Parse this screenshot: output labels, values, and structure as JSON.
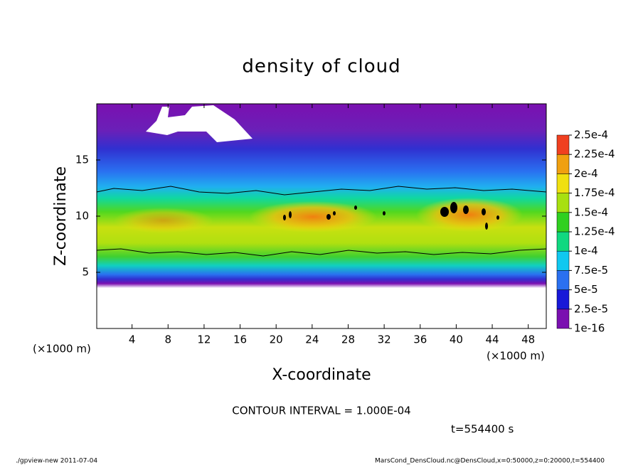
{
  "chart_data": {
    "type": "contour",
    "title": "density of cloud",
    "x_label": "X-coordinate",
    "y_label": "Z-coordinate",
    "x_unit": "(×1000 m)",
    "y_unit": "(×1000 m)",
    "xlim": [
      0,
      50
    ],
    "xticks": [
      4,
      8,
      12,
      16,
      20,
      24,
      28,
      32,
      36,
      40,
      44,
      48
    ],
    "ylim": [
      0,
      20
    ],
    "yticks": [
      5,
      10,
      15
    ],
    "levels": [
      {
        "value": 1e-16,
        "label": "1e-16"
      },
      {
        "value": 2.5e-05,
        "label": "2.5e-5"
      },
      {
        "value": 5e-05,
        "label": "5e-5"
      },
      {
        "value": 7.5e-05,
        "label": "7.5e-5"
      },
      {
        "value": 0.0001,
        "label": "1e-4"
      },
      {
        "value": 0.000125,
        "label": "1.25e-4"
      },
      {
        "value": 0.00015,
        "label": "1.5e-4"
      },
      {
        "value": 0.000175,
        "label": "1.75e-4"
      },
      {
        "value": 0.0002,
        "label": "2e-4"
      },
      {
        "value": 0.000225,
        "label": "2.25e-4"
      },
      {
        "value": 0.00025,
        "label": "2.5e-4"
      }
    ],
    "level_colors": [
      "#7a10b0",
      "#1818d8",
      "#2a70f0",
      "#10c8f0",
      "#10d880",
      "#30d020",
      "#a8e010",
      "#f0e010",
      "#f0a010",
      "#f04020"
    ],
    "contour_interval": "CONTOUR INTERVAL = 1.000E-04",
    "time_label": "t=554400 s",
    "footer_left": "./gpview-new  2011-07-04",
    "footer_right": "MarsCond_DensCloud.nc@DensCloud,x=0:50000,z=0:20000,t=554400"
  }
}
